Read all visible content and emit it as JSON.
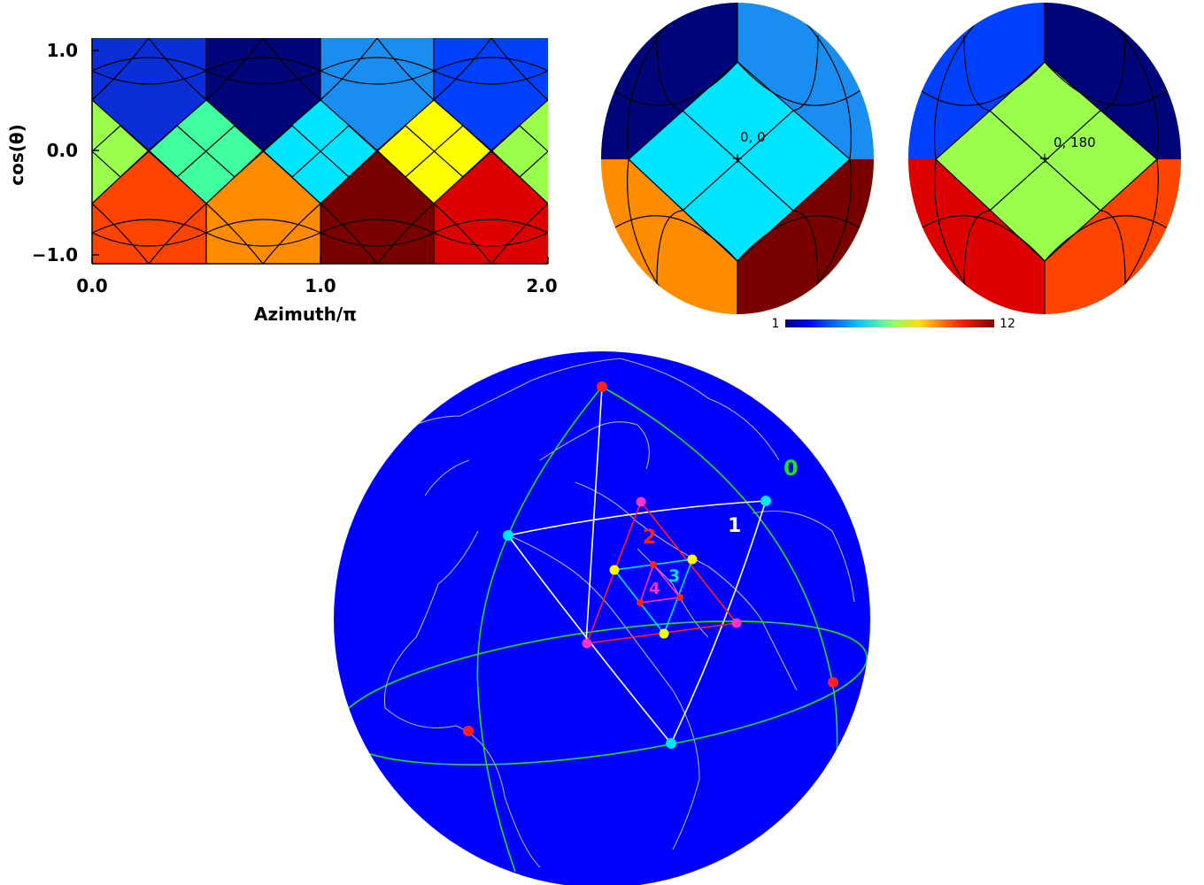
{
  "panel_top_left": {
    "y_axis_label": "cos(θ)",
    "x_axis_label": "Azimuth/π",
    "y_ticks": [
      "1.0",
      "0.0",
      "−1.0"
    ],
    "x_ticks": [
      "0.0",
      "1.0",
      "2.0"
    ]
  },
  "panel_top_right": {
    "left_center_label": "0, 0",
    "right_center_label": "0, 180",
    "colorbar_min": "1",
    "colorbar_max": "12"
  },
  "globe": {
    "labels": [
      "0",
      "1",
      "2",
      "3",
      "4"
    ],
    "label_colors": [
      "#22dd22",
      "#ffffff",
      "#ff2020",
      "#00e5ff",
      "#ff33cc"
    ]
  },
  "colors": {
    "ocean": "#0000ff",
    "grid": "#000000",
    "coast": "#b0b0b0",
    "great_circle": "#22dd22"
  }
}
